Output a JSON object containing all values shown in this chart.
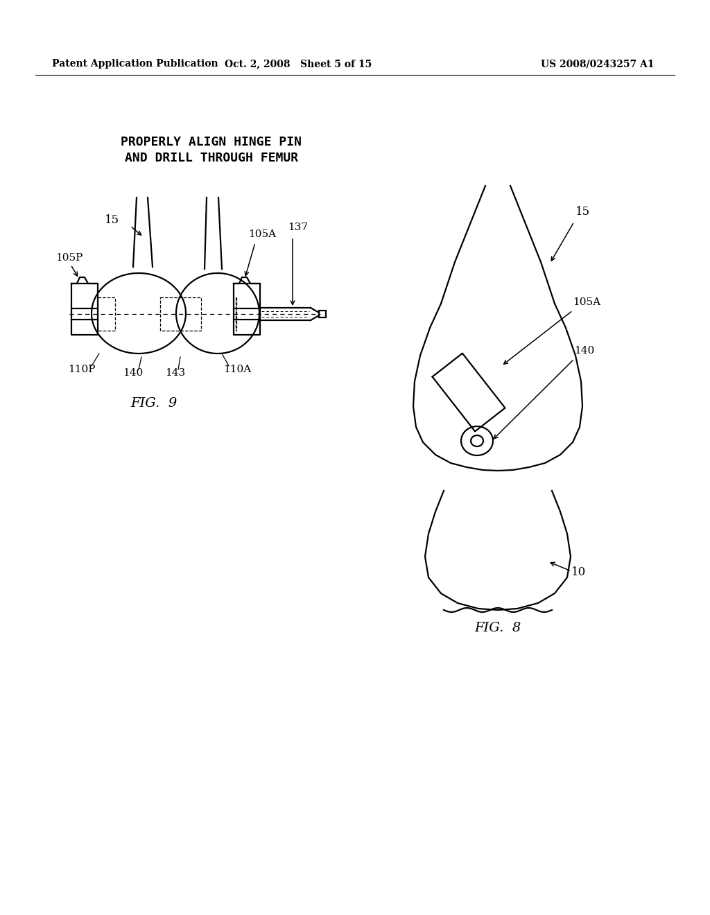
{
  "bg_color": "#ffffff",
  "header_left": "Patent Application Publication",
  "header_mid": "Oct. 2, 2008   Sheet 5 of 15",
  "header_right": "US 2008/0243257 A1",
  "title_line1": "PROPERLY ALIGN HINGE PIN",
  "title_line2": "AND DRILL THROUGH FEMUR",
  "fig9_label": "FIG.  9",
  "fig8_label": "FIG.  8",
  "lw": 1.6,
  "font_size_header": 10,
  "font_size_label": 11,
  "font_size_number": 12,
  "font_size_fig": 14
}
